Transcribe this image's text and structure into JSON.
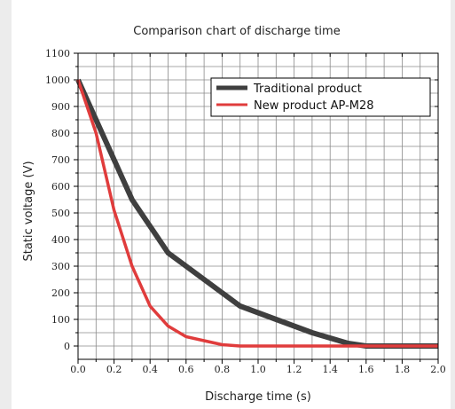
{
  "chart_data": {
    "type": "line",
    "title": "Comparison chart of discharge time",
    "xlabel": "Discharge time (s)",
    "ylabel": "Static voltage (V)",
    "xlim": [
      0,
      2.0
    ],
    "ylim": [
      -50,
      1100
    ],
    "x_ticks": [
      0.0,
      0.2,
      0.4,
      0.6,
      0.8,
      1.0,
      1.2,
      1.4,
      1.6,
      1.8,
      2.0
    ],
    "x_tick_labels": [
      "0.0",
      "0.2",
      "0.4",
      "0.6",
      "0.8",
      "1.0",
      "1.2",
      "1.4",
      "1.6",
      "1.8",
      "2.0"
    ],
    "y_ticks": [
      0,
      100,
      200,
      300,
      400,
      500,
      600,
      700,
      800,
      900,
      1000,
      1100
    ],
    "y_tick_labels": [
      "0",
      "100",
      "200",
      "300",
      "400",
      "500",
      "600",
      "700",
      "800",
      "900",
      "1000",
      "1100"
    ],
    "grid": true,
    "legend_position": "top-right",
    "series": [
      {
        "name": "Traditional product",
        "color": "#3f3f3f",
        "x": [
          0.0,
          0.1,
          0.2,
          0.3,
          0.4,
          0.5,
          0.6,
          0.7,
          0.8,
          0.9,
          1.0,
          1.1,
          1.2,
          1.3,
          1.4,
          1.5,
          1.6,
          1.7,
          1.8,
          1.9,
          2.0
        ],
        "y": [
          1000,
          850,
          700,
          550,
          450,
          350,
          300,
          250,
          200,
          150,
          125,
          100,
          75,
          50,
          30,
          10,
          0,
          0,
          0,
          0,
          0
        ]
      },
      {
        "name": "New product AP-M28",
        "color": "#e03c3c",
        "x": [
          0.0,
          0.1,
          0.2,
          0.3,
          0.4,
          0.5,
          0.6,
          0.7,
          0.8,
          0.9,
          1.0,
          1.2,
          1.4,
          1.6,
          1.8,
          2.0
        ],
        "y": [
          1000,
          800,
          510,
          300,
          150,
          75,
          35,
          20,
          5,
          0,
          0,
          0,
          0,
          0,
          0,
          0
        ]
      }
    ]
  }
}
